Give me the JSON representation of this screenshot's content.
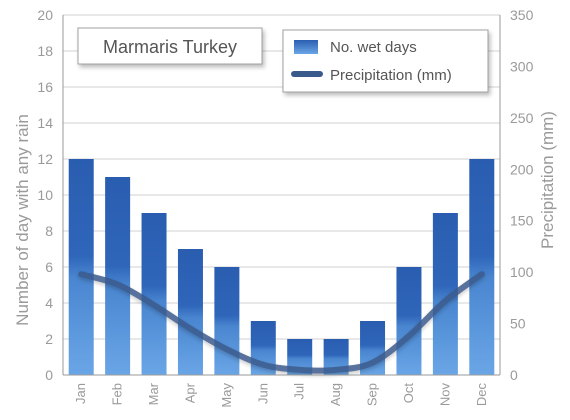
{
  "chart_data": {
    "type": "bar",
    "title": "Marmaris Turkey",
    "categories": [
      "Jan",
      "Feb",
      "Mar",
      "Apr",
      "May",
      "Jun",
      "Jul",
      "Aug",
      "Sep",
      "Oct",
      "Nov",
      "Dec"
    ],
    "series": [
      {
        "name": "No. wet days",
        "type": "bar",
        "axis": "left",
        "values": [
          12,
          11,
          9,
          7,
          6,
          3,
          2,
          2,
          3,
          6,
          9,
          12
        ]
      },
      {
        "name": "Precipitation (mm)",
        "type": "line",
        "axis": "right",
        "values": [
          98,
          88,
          68,
          45,
          25,
          10,
          5,
          5,
          12,
          38,
          72,
          98
        ]
      }
    ],
    "ylabel": "Number of day with any rain",
    "y2label": "Precipitation (mm)",
    "ylim": [
      0,
      20
    ],
    "y2lim": [
      0,
      350
    ],
    "yticks": [
      0,
      2,
      4,
      6,
      8,
      10,
      12,
      14,
      16,
      18,
      20
    ],
    "y2ticks": [
      0,
      50,
      100,
      150,
      200,
      250,
      300,
      350
    ],
    "grid": true,
    "legend_position": "top-right",
    "colors": {
      "bar_top": "#2a5db0",
      "bar_mid": "#4a86d0",
      "bar_bottom": "#6aa6e6",
      "line": "#3a5a8c",
      "grid": "#d0d0d0",
      "axis": "#9a9a9a"
    }
  }
}
